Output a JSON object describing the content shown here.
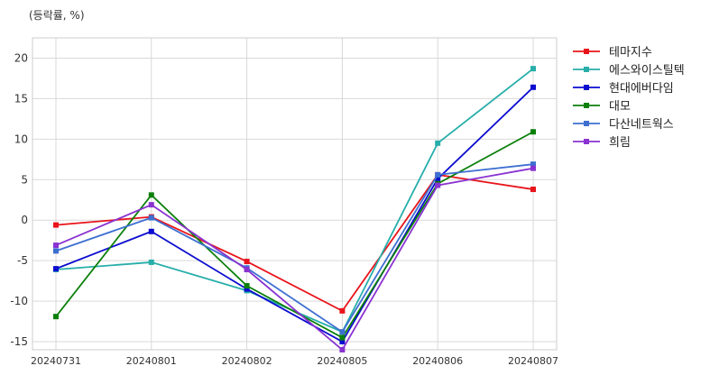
{
  "chart_data": {
    "type": "line",
    "unit_label": "(등락률, %)",
    "categories": [
      "20240731",
      "20240801",
      "20240802",
      "20240805",
      "20240806",
      "20240807"
    ],
    "ylim": [
      -16,
      22.5
    ],
    "yticks": [
      -15,
      -10,
      -5,
      0,
      5,
      10,
      15,
      20
    ],
    "grid": true,
    "legend_position": "outside-right",
    "marker": "square",
    "series": [
      {
        "name": "테마지수",
        "color": "#e8141b",
        "values": [
          -0.6,
          0.4,
          -5.1,
          -11.2,
          5.6,
          3.8
        ]
      },
      {
        "name": "에스와이스틸텍",
        "color": "#27aeaa",
        "values": [
          -6.1,
          -5.2,
          -8.7,
          -13.8,
          9.5,
          18.7
        ]
      },
      {
        "name": "현대에버다임",
        "color": "#0c0ccf",
        "values": [
          -6.0,
          -1.4,
          -8.5,
          -15.0,
          5.1,
          16.4
        ]
      },
      {
        "name": "대모",
        "color": "#0b800b",
        "values": [
          -11.9,
          3.1,
          -8.1,
          -14.5,
          4.5,
          10.9
        ]
      },
      {
        "name": "다산네트웍스",
        "color": "#3d6fd1",
        "values": [
          -3.8,
          0.3,
          -5.9,
          -13.8,
          5.6,
          6.9
        ]
      },
      {
        "name": "희림",
        "color": "#8a33d1",
        "values": [
          -3.1,
          1.9,
          -6.1,
          -16.0,
          4.3,
          6.4
        ]
      }
    ]
  }
}
